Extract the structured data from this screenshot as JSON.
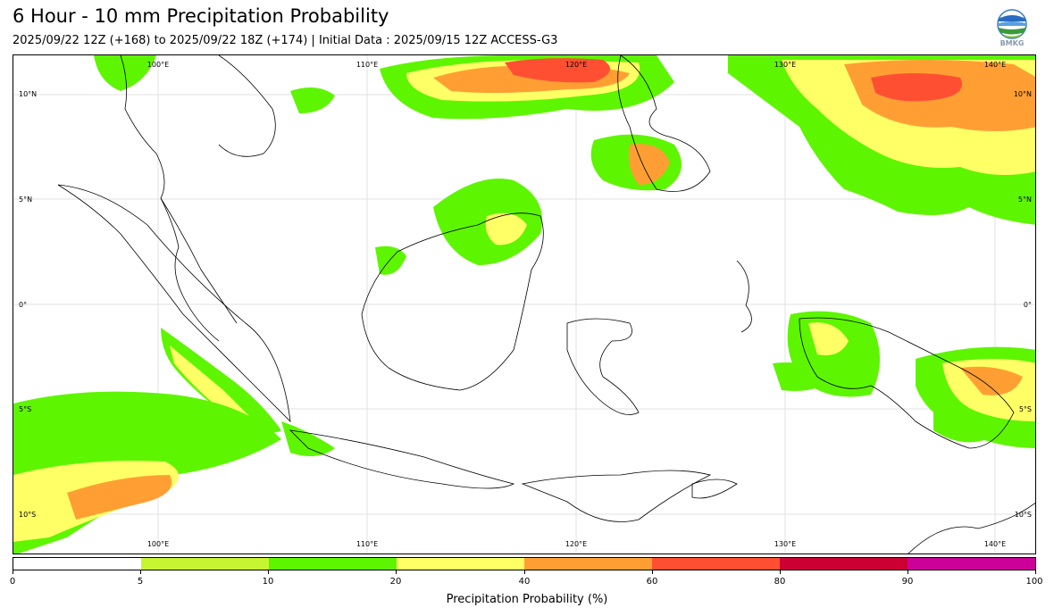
{
  "header": {
    "title": "6 Hour - 10 mm Precipitation Probability",
    "subtitle": "2025/09/22 12Z (+168) to 2025/09/22 18Z (+174) | Initial Data : 2025/09/15 12Z ACCESS-G3",
    "logo_text": "BMKG"
  },
  "map": {
    "lon_range": [
      95,
      144
    ],
    "lat_range": [
      -12,
      12
    ],
    "lon_labels": [
      "100°E",
      "110°E",
      "120°E",
      "130°E",
      "140°E"
    ],
    "lat_labels": [
      "10°N",
      "5°N",
      "0°",
      "5°S",
      "10°S"
    ],
    "grid": true
  },
  "colorbar": {
    "title": "Precipitation Probability (%)",
    "ticks": [
      "0",
      "5",
      "10",
      "20",
      "40",
      "60",
      "80",
      "90",
      "100"
    ],
    "colors": [
      "#ffffff",
      "#c8f532",
      "#5ef500",
      "#ffff66",
      "#ff9f33",
      "#ff4f33",
      "#cc0033",
      "#cc0099"
    ]
  },
  "colors": {
    "p5": "#c8f532",
    "p10": "#5ef500",
    "p20": "#ffff66",
    "p40": "#ff9f33",
    "p60": "#ff4f33",
    "p80": "#cc0033",
    "coast": "#000000",
    "grid": "#dddddd"
  }
}
